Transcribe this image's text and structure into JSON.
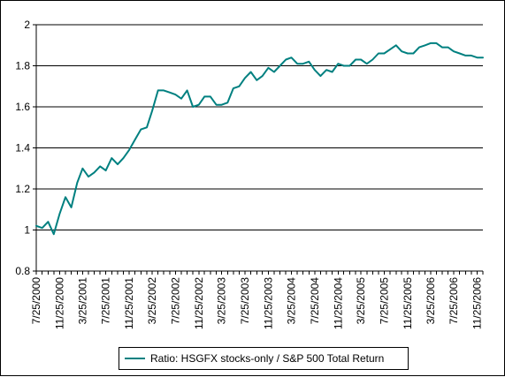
{
  "chart_data": {
    "type": "line",
    "title": "",
    "xlabel": "",
    "ylabel": "",
    "ylim": [
      0.8,
      2.0
    ],
    "yticks": [
      "0.8",
      "1",
      "1.2",
      "1.4",
      "1.6",
      "1.8",
      "2"
    ],
    "grid": "horizontal",
    "legend_position": "bottom",
    "line_color": "#008080",
    "plot_background": "#ffffff",
    "x_tick_labels": [
      "7/25/2000",
      "11/25/2000",
      "3/25/2001",
      "7/25/2001",
      "11/25/2001",
      "3/25/2002",
      "7/25/2002",
      "11/25/2002",
      "3/25/2003",
      "7/25/2003",
      "11/25/2003",
      "3/25/2004",
      "7/25/2004",
      "11/25/2004",
      "3/25/2005",
      "7/25/2005",
      "11/25/2005",
      "3/25/2006",
      "7/25/2006",
      "11/25/2006"
    ],
    "x_start": "7/25/2000",
    "x_end": "12/25/2006",
    "series": [
      {
        "name": "Ratio: HSGFX stocks-only / S&P 500 Total Return",
        "x": [
          "7/25/2000",
          "8/25/2000",
          "9/25/2000",
          "10/25/2000",
          "11/25/2000",
          "12/25/2000",
          "1/25/2001",
          "2/25/2001",
          "3/25/2001",
          "4/25/2001",
          "5/25/2001",
          "6/25/2001",
          "7/25/2001",
          "8/25/2001",
          "9/25/2001",
          "10/25/2001",
          "11/25/2001",
          "12/25/2001",
          "1/25/2002",
          "2/25/2002",
          "3/25/2002",
          "4/25/2002",
          "5/25/2002",
          "6/25/2002",
          "7/25/2002",
          "8/25/2002",
          "9/25/2002",
          "10/25/2002",
          "11/25/2002",
          "12/25/2002",
          "1/25/2003",
          "2/25/2003",
          "3/25/2003",
          "4/25/2003",
          "5/25/2003",
          "6/25/2003",
          "7/25/2003",
          "8/25/2003",
          "9/25/2003",
          "10/25/2003",
          "11/25/2003",
          "12/25/2003",
          "1/25/2004",
          "2/25/2004",
          "3/25/2004",
          "4/25/2004",
          "5/25/2004",
          "6/25/2004",
          "7/25/2004",
          "8/25/2004",
          "9/25/2004",
          "10/25/2004",
          "11/25/2004",
          "12/25/2004",
          "1/25/2005",
          "2/25/2005",
          "3/25/2005",
          "4/25/2005",
          "5/25/2005",
          "6/25/2005",
          "7/25/2005",
          "8/25/2005",
          "9/25/2005",
          "10/25/2005",
          "11/25/2005",
          "12/25/2005",
          "1/25/2006",
          "2/25/2006",
          "3/25/2006",
          "4/25/2006",
          "5/25/2006",
          "6/25/2006",
          "7/25/2006",
          "8/25/2006",
          "9/25/2006",
          "10/25/2006",
          "11/25/2006",
          "12/25/2006"
        ],
        "values": [
          1.02,
          1.01,
          1.04,
          0.98,
          1.08,
          1.16,
          1.11,
          1.23,
          1.3,
          1.26,
          1.28,
          1.31,
          1.29,
          1.35,
          1.32,
          1.35,
          1.39,
          1.44,
          1.49,
          1.5,
          1.58,
          1.68,
          1.68,
          1.67,
          1.66,
          1.64,
          1.68,
          1.6,
          1.61,
          1.65,
          1.65,
          1.61,
          1.61,
          1.62,
          1.69,
          1.7,
          1.74,
          1.77,
          1.73,
          1.75,
          1.79,
          1.77,
          1.8,
          1.83,
          1.84,
          1.81,
          1.81,
          1.82,
          1.78,
          1.75,
          1.78,
          1.77,
          1.81,
          1.8,
          1.8,
          1.83,
          1.83,
          1.81,
          1.83,
          1.86,
          1.86,
          1.88,
          1.9,
          1.87,
          1.86,
          1.86,
          1.89,
          1.9,
          1.91,
          1.91,
          1.89,
          1.89,
          1.87,
          1.86,
          1.85,
          1.85,
          1.84,
          1.84
        ]
      }
    ]
  }
}
